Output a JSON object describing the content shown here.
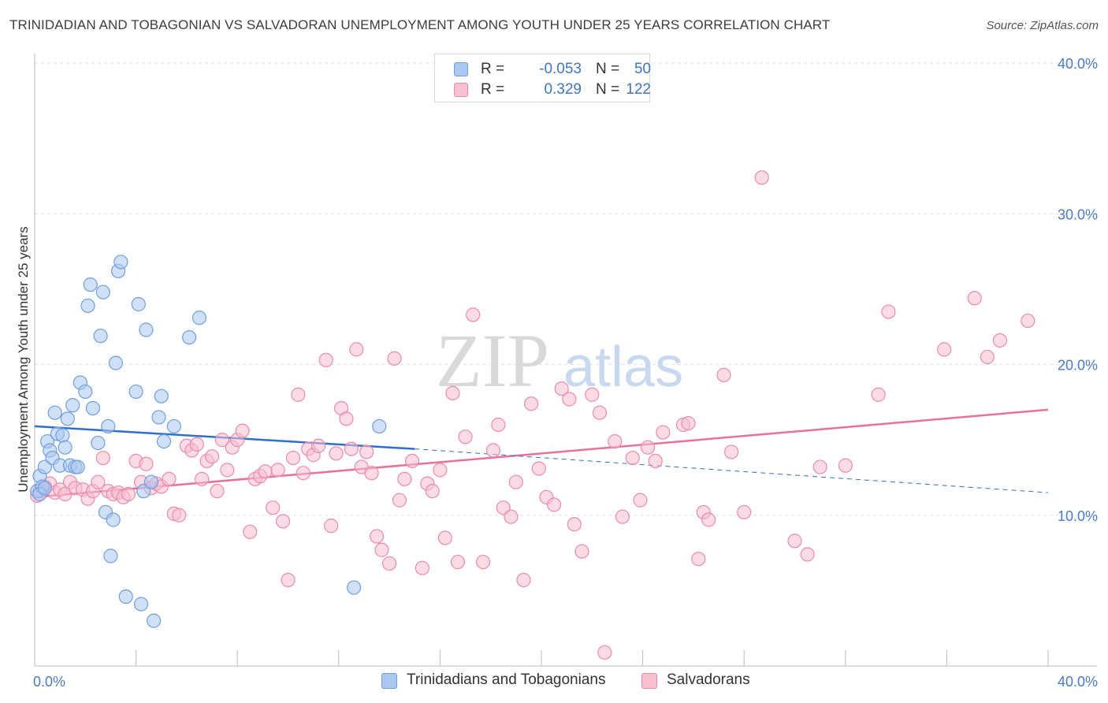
{
  "title": "TRINIDADIAN AND TOBAGONIAN VS SALVADORAN UNEMPLOYMENT AMONG YOUTH UNDER 25 YEARS CORRELATION CHART",
  "source": "Source: ZipAtlas.com",
  "watermark": {
    "zip": "ZIP",
    "atlas": "atlas"
  },
  "legend": {
    "rows": [
      {
        "r_label": "R =",
        "r_value": "-0.053",
        "n_label": "N =",
        "n_value": "50",
        "color": "#aac8f0",
        "border": "#6f9ee0"
      },
      {
        "r_label": "R =",
        "r_value": "0.329",
        "n_label": "N =",
        "n_value": "122",
        "color": "#f8c0d0",
        "border": "#ec8aaa"
      }
    ]
  },
  "bottom_legend": [
    {
      "label": "Trinidadians and Tobagonians",
      "color": "#aac8f0",
      "border": "#6f9ee0"
    },
    {
      "label": "Salvadorans",
      "color": "#f8c0d0",
      "border": "#ec8aaa"
    }
  ],
  "chart_data": {
    "type": "scatter",
    "title": "TRINIDADIAN AND TOBAGONIAN VS SALVADORAN UNEMPLOYMENT AMONG YOUTH UNDER 25 YEARS CORRELATION CHART",
    "xlabel": "",
    "ylabel": "Unemployment Among Youth under 25 years",
    "xlim": [
      0,
      40
    ],
    "ylim": [
      0,
      40
    ],
    "x_tick_labels": [
      {
        "value": 0,
        "label": "0.0%"
      },
      {
        "value": 40,
        "label": "40.0%"
      }
    ],
    "y_tick_labels": [
      {
        "value": 10,
        "label": "10.0%"
      },
      {
        "value": 20,
        "label": "20.0%"
      },
      {
        "value": 30,
        "label": "30.0%"
      },
      {
        "value": 40,
        "label": "40.0%"
      }
    ],
    "grid": true,
    "series": [
      {
        "name": "Trinidadians and Tobagonians",
        "color": "#aac8f0",
        "stroke": "#6f9ee0",
        "line_color": "#2f6fcc",
        "trend": {
          "x1": 0,
          "y1": 15.9,
          "x2": 15,
          "y2": 14.4,
          "dash_to_x": 40,
          "dash_to_y": 11.5
        },
        "points": [
          [
            0.1,
            11.6
          ],
          [
            0.2,
            12.6
          ],
          [
            0.3,
            11.9
          ],
          [
            0.4,
            13.2
          ],
          [
            0.5,
            14.9
          ],
          [
            0.6,
            14.3
          ],
          [
            0.7,
            13.8
          ],
          [
            0.8,
            16.8
          ],
          [
            0.9,
            15.4
          ],
          [
            1.0,
            13.3
          ],
          [
            1.1,
            15.3
          ],
          [
            1.2,
            14.5
          ],
          [
            1.3,
            16.4
          ],
          [
            1.4,
            13.3
          ],
          [
            1.5,
            17.3
          ],
          [
            1.6,
            13.2
          ],
          [
            1.7,
            13.2
          ],
          [
            1.8,
            18.8
          ],
          [
            2.0,
            18.2
          ],
          [
            2.1,
            23.9
          ],
          [
            2.2,
            25.3
          ],
          [
            2.3,
            17.1
          ],
          [
            2.5,
            14.8
          ],
          [
            2.6,
            21.9
          ],
          [
            2.7,
            24.8
          ],
          [
            2.8,
            10.2
          ],
          [
            2.9,
            15.9
          ],
          [
            3.0,
            7.3
          ],
          [
            3.1,
            9.7
          ],
          [
            3.2,
            20.1
          ],
          [
            3.3,
            26.2
          ],
          [
            3.4,
            26.8
          ],
          [
            3.6,
            4.6
          ],
          [
            4.0,
            18.2
          ],
          [
            4.1,
            24.0
          ],
          [
            4.2,
            4.1
          ],
          [
            4.3,
            11.6
          ],
          [
            4.4,
            22.3
          ],
          [
            4.6,
            12.2
          ],
          [
            4.7,
            3.0
          ],
          [
            4.9,
            16.5
          ],
          [
            5.0,
            17.9
          ],
          [
            5.1,
            14.9
          ],
          [
            5.5,
            15.9
          ],
          [
            6.1,
            21.8
          ],
          [
            6.5,
            23.1
          ],
          [
            12.6,
            5.2
          ],
          [
            13.6,
            15.9
          ],
          [
            0.2,
            11.4
          ],
          [
            0.4,
            11.8
          ]
        ]
      },
      {
        "name": "Salvadorans",
        "color": "#f8c0d0",
        "stroke": "#ec8aaa",
        "line_color": "#e8709a",
        "trend": {
          "x1": 0,
          "y1": 11.2,
          "x2": 40,
          "y2": 17.0
        },
        "points": [
          [
            0.1,
            11.3
          ],
          [
            0.2,
            11.6
          ],
          [
            0.4,
            11.9
          ],
          [
            0.6,
            12.1
          ],
          [
            0.8,
            11.5
          ],
          [
            1.0,
            11.7
          ],
          [
            1.2,
            11.4
          ],
          [
            1.4,
            12.2
          ],
          [
            1.6,
            11.8
          ],
          [
            1.9,
            11.7
          ],
          [
            2.1,
            11.1
          ],
          [
            2.3,
            11.6
          ],
          [
            2.5,
            12.2
          ],
          [
            2.7,
            13.8
          ],
          [
            2.9,
            11.6
          ],
          [
            3.1,
            11.4
          ],
          [
            3.3,
            11.5
          ],
          [
            3.5,
            11.2
          ],
          [
            3.7,
            11.4
          ],
          [
            4.0,
            13.6
          ],
          [
            4.2,
            12.2
          ],
          [
            4.4,
            13.4
          ],
          [
            4.6,
            11.8
          ],
          [
            4.8,
            12.1
          ],
          [
            5.0,
            11.9
          ],
          [
            5.3,
            12.4
          ],
          [
            5.5,
            10.1
          ],
          [
            5.7,
            10.0
          ],
          [
            6.0,
            14.6
          ],
          [
            6.2,
            14.3
          ],
          [
            6.4,
            14.7
          ],
          [
            6.6,
            12.4
          ],
          [
            6.8,
            13.6
          ],
          [
            7.0,
            13.9
          ],
          [
            7.2,
            11.6
          ],
          [
            7.4,
            15.0
          ],
          [
            7.6,
            13.0
          ],
          [
            7.8,
            14.5
          ],
          [
            8.0,
            15.0
          ],
          [
            8.2,
            15.6
          ],
          [
            8.5,
            8.9
          ],
          [
            8.7,
            12.4
          ],
          [
            8.9,
            12.6
          ],
          [
            9.1,
            12.9
          ],
          [
            9.4,
            10.5
          ],
          [
            9.6,
            13.0
          ],
          [
            9.8,
            9.6
          ],
          [
            10.0,
            5.7
          ],
          [
            10.2,
            13.8
          ],
          [
            10.4,
            18.0
          ],
          [
            10.6,
            12.8
          ],
          [
            10.8,
            14.4
          ],
          [
            11.0,
            14.0
          ],
          [
            11.2,
            14.6
          ],
          [
            11.5,
            20.3
          ],
          [
            11.7,
            9.3
          ],
          [
            11.9,
            14.1
          ],
          [
            12.1,
            17.1
          ],
          [
            12.3,
            16.4
          ],
          [
            12.5,
            14.4
          ],
          [
            12.7,
            21.0
          ],
          [
            12.9,
            13.2
          ],
          [
            13.1,
            14.2
          ],
          [
            13.3,
            12.8
          ],
          [
            13.5,
            8.6
          ],
          [
            13.7,
            7.7
          ],
          [
            14.0,
            6.8
          ],
          [
            14.2,
            20.4
          ],
          [
            14.4,
            11.0
          ],
          [
            14.6,
            12.4
          ],
          [
            14.9,
            13.6
          ],
          [
            15.3,
            6.5
          ],
          [
            15.5,
            12.1
          ],
          [
            15.7,
            11.6
          ],
          [
            16.0,
            13.0
          ],
          [
            16.2,
            8.5
          ],
          [
            16.5,
            18.1
          ],
          [
            16.7,
            6.9
          ],
          [
            17.0,
            15.2
          ],
          [
            17.3,
            23.3
          ],
          [
            17.7,
            6.9
          ],
          [
            18.1,
            14.3
          ],
          [
            18.3,
            16.0
          ],
          [
            18.5,
            10.5
          ],
          [
            18.8,
            9.9
          ],
          [
            19.0,
            12.2
          ],
          [
            19.3,
            5.7
          ],
          [
            19.6,
            17.4
          ],
          [
            19.9,
            13.1
          ],
          [
            20.2,
            11.2
          ],
          [
            20.5,
            10.7
          ],
          [
            20.8,
            18.4
          ],
          [
            21.1,
            17.7
          ],
          [
            21.3,
            9.4
          ],
          [
            21.6,
            7.6
          ],
          [
            22.0,
            18.0
          ],
          [
            22.3,
            16.8
          ],
          [
            22.5,
            0.9
          ],
          [
            22.9,
            14.9
          ],
          [
            23.2,
            9.9
          ],
          [
            23.6,
            13.8
          ],
          [
            23.9,
            11.0
          ],
          [
            24.2,
            14.5
          ],
          [
            24.5,
            13.6
          ],
          [
            24.8,
            15.5
          ],
          [
            25.6,
            16.0
          ],
          [
            25.8,
            16.1
          ],
          [
            26.2,
            7.1
          ],
          [
            26.4,
            10.2
          ],
          [
            26.6,
            9.7
          ],
          [
            27.2,
            19.3
          ],
          [
            27.5,
            14.2
          ],
          [
            28.0,
            10.2
          ],
          [
            28.7,
            32.4
          ],
          [
            30.0,
            8.3
          ],
          [
            30.5,
            7.4
          ],
          [
            31.0,
            13.2
          ],
          [
            32.0,
            13.3
          ],
          [
            33.3,
            18.0
          ],
          [
            33.7,
            23.5
          ],
          [
            35.9,
            21.0
          ],
          [
            37.1,
            24.4
          ],
          [
            37.6,
            20.5
          ],
          [
            38.1,
            21.6
          ],
          [
            39.2,
            22.9
          ]
        ]
      }
    ]
  }
}
